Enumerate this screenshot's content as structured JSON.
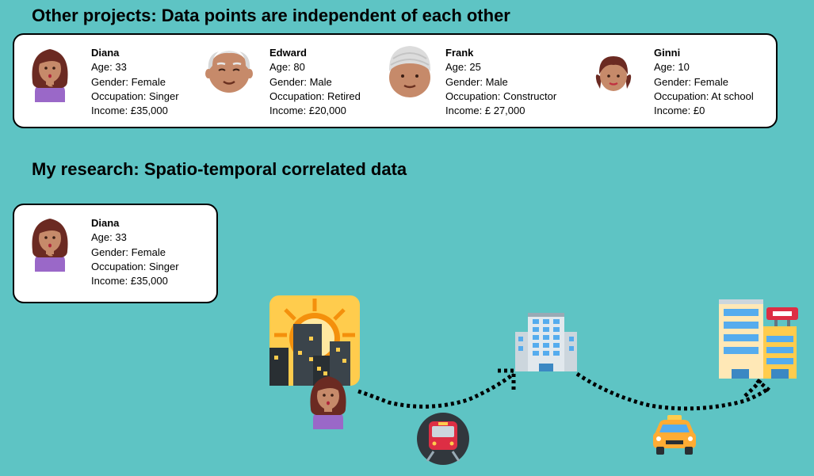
{
  "headings": {
    "other_projects": "Other projects: Data points are independent of each other",
    "my_research": "My research: Spatio-temporal correlated data"
  },
  "people": [
    {
      "name": "Diana",
      "age": "Age: 33",
      "gender": "Gender: Female",
      "occupation": "Occupation: Singer",
      "income": "Income: £35,000",
      "icon": "woman-icon"
    },
    {
      "name": "Edward",
      "age": "Age: 80",
      "gender": "Gender: Male",
      "occupation": "Occupation: Retired",
      "income": "Income:  £20,000",
      "icon": "old-man-icon"
    },
    {
      "name": "Frank",
      "age": "Age: 25",
      "gender": "Gender: Male",
      "occupation": "Occupation: Constructor",
      "income": "Income: £ 27,000",
      "icon": "man-turban-icon"
    },
    {
      "name": "Ginni",
      "age": "Age: 10",
      "gender": "Gender: Female",
      "occupation": "Occupation: At school",
      "income": "Income:  £0",
      "icon": "girl-icon"
    }
  ],
  "research_person": {
    "name": "Diana",
    "age": "Age: 33",
    "gender": "Gender: Female",
    "occupation": "Occupation: Singer",
    "income": "Income: £35,000",
    "icon": "woman-icon"
  },
  "scene_icons": [
    "sunrise-city-icon",
    "woman-icon",
    "train-icon",
    "office-building-icon",
    "taxi-icon",
    "hospital-buildings-icon"
  ],
  "colors": {
    "background": "#5ec4c4",
    "skin": "#c68a6a",
    "hair": "#6b2a22",
    "shirt": "#9a68c8"
  }
}
